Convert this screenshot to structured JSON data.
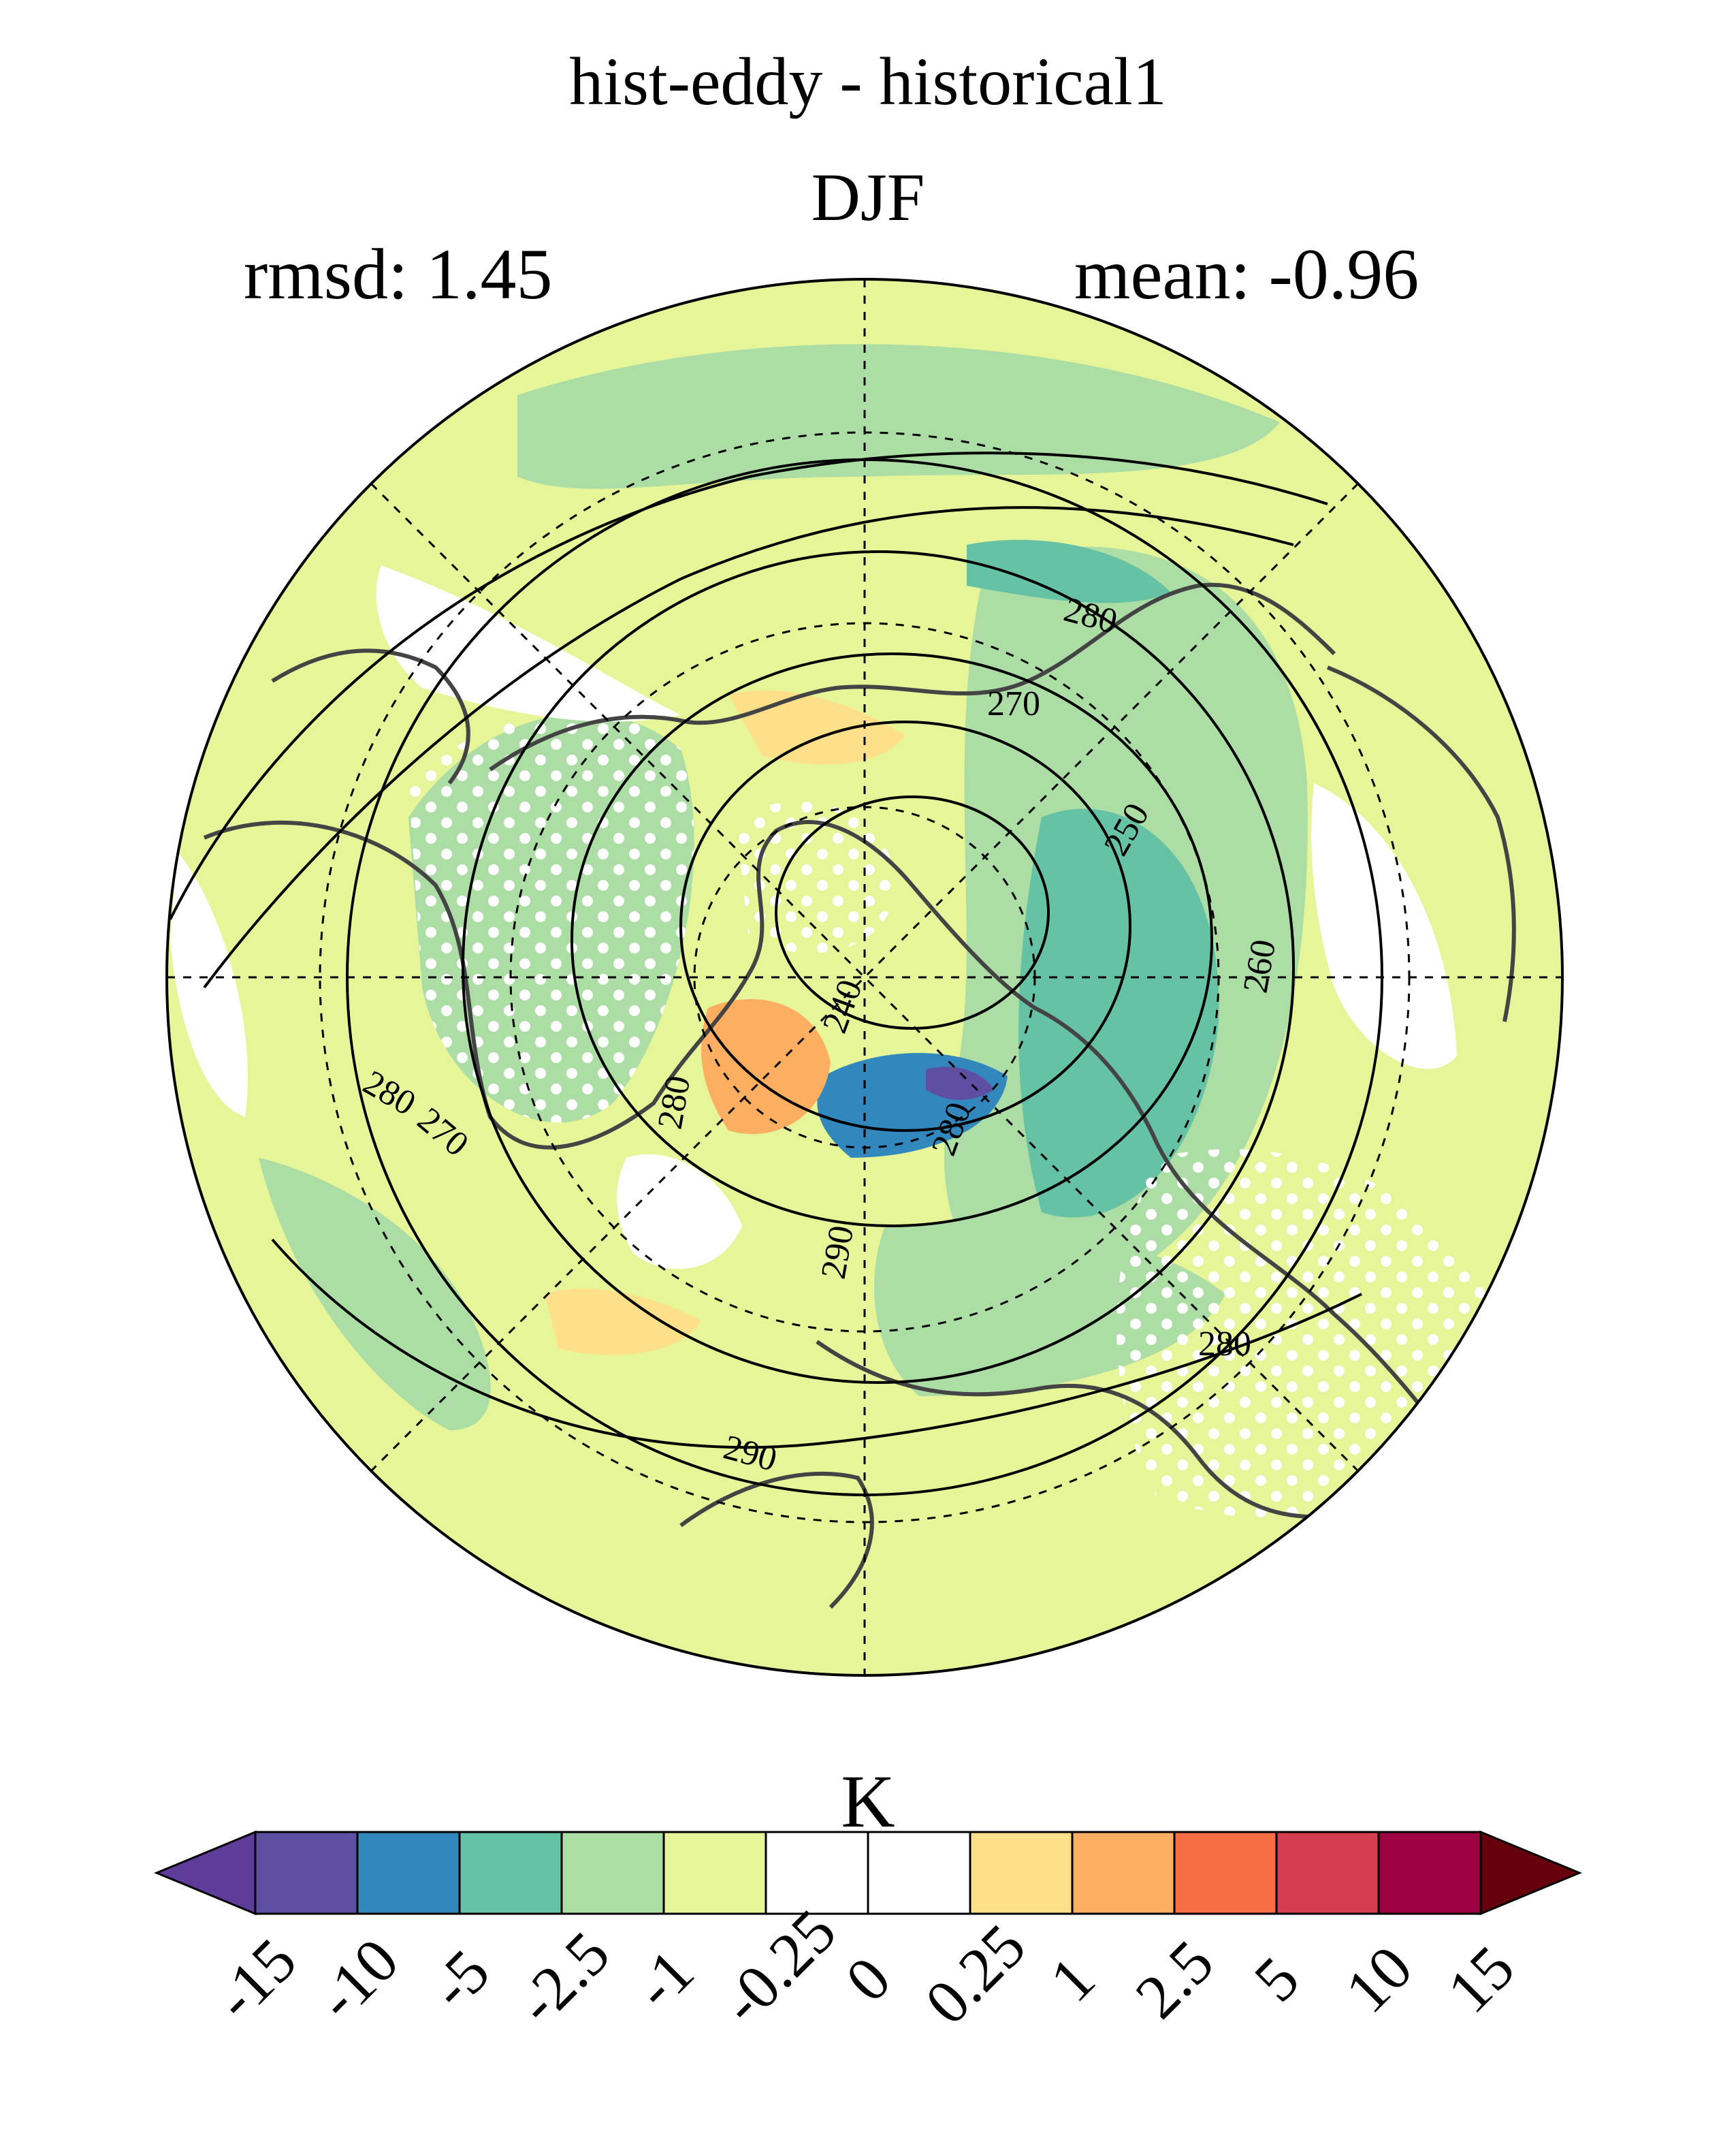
{
  "header": {
    "title": "hist-eddy - historical1",
    "subtitle": "DJF",
    "rmsd": "rmsd: 1.45",
    "mean": "mean: -0.96"
  },
  "map": {
    "projection": "north-polar-stereographic",
    "graticule": "dashed",
    "stippling": "white dots",
    "contour_labels": [
      "280",
      "270",
      "250",
      "260",
      "240",
      "280",
      "270",
      "280",
      "290",
      "280",
      "280",
      "290"
    ]
  },
  "colorbar": {
    "units": "K",
    "levels": [
      "-15",
      "-10",
      "-5",
      "-2.5",
      "-1",
      "-0.25",
      "0",
      "0.25",
      "1",
      "2.5",
      "5",
      "10",
      "15"
    ],
    "colors": [
      "#5e3c99",
      "#5e4fa2",
      "#3288bd",
      "#66c2a5",
      "#abdda4",
      "#e6f598",
      "#ffffff",
      "#ffffff",
      "#fee08b",
      "#fdae61",
      "#f46d43",
      "#d53e4f",
      "#9e0142",
      "#67000d"
    ]
  }
}
